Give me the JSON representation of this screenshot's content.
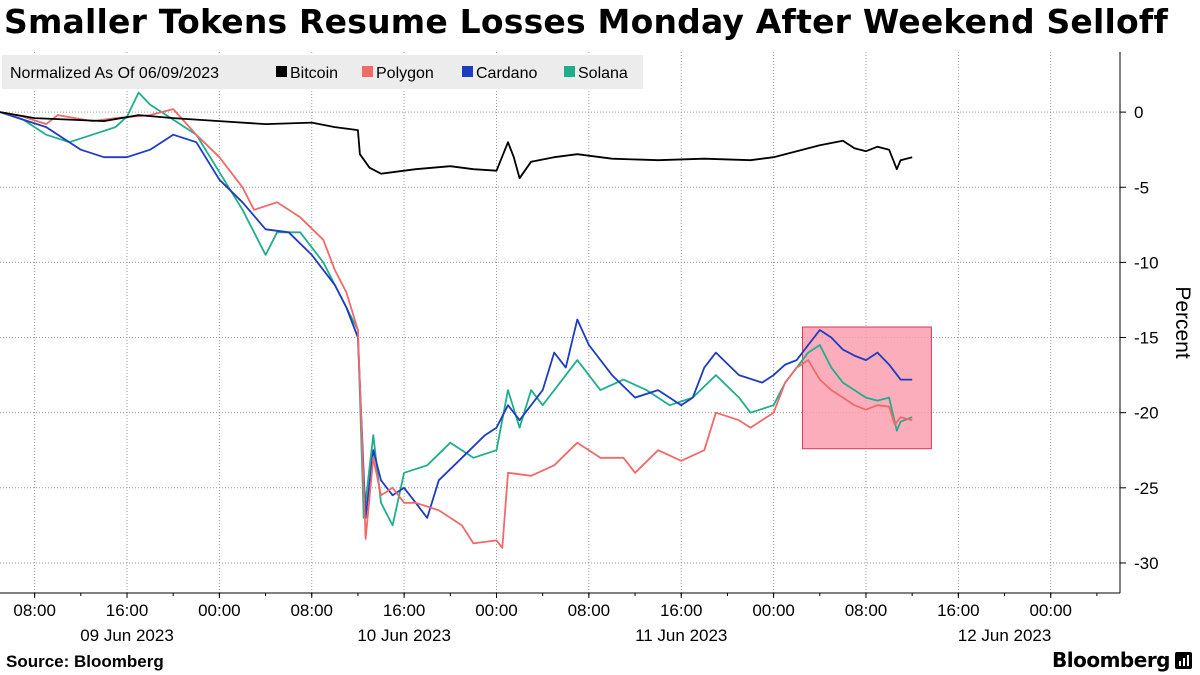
{
  "title": "Smaller Tokens Resume Losses Monday After Weekend Selloff",
  "source": "Source:  Bloomberg",
  "brand": "Bloomberg",
  "chart_data": {
    "type": "line",
    "title": "Smaller Tokens Resume Losses Monday After Weekend Selloff",
    "legend_title": "Normalized As Of 06/09/2023",
    "legend_position": "top-left",
    "ylabel": "Percent",
    "ylim": [
      -32,
      4
    ],
    "yticks": [
      0,
      -5,
      -10,
      -15,
      -20,
      -25,
      -30
    ],
    "ytick_labels": [
      "0",
      "-5",
      "-10",
      "-15",
      "-20",
      "-25",
      "-30"
    ],
    "xlim": [
      "2023-06-09 05:00",
      "2023-06-13 06:00"
    ],
    "xticks": [
      "2023-06-09 08:00",
      "2023-06-09 16:00",
      "2023-06-10 00:00",
      "2023-06-10 08:00",
      "2023-06-10 16:00",
      "2023-06-11 00:00",
      "2023-06-11 08:00",
      "2023-06-11 16:00",
      "2023-06-12 00:00",
      "2023-06-12 08:00",
      "2023-06-12 16:00",
      "2023-06-13 00:00"
    ],
    "xtick_labels": [
      "08:00",
      "16:00",
      "00:00",
      "08:00",
      "16:00",
      "00:00",
      "08:00",
      "16:00",
      "00:00",
      "08:00",
      "16:00",
      "00:00"
    ],
    "date_labels": [
      {
        "label": "09 Jun 2023",
        "at": "2023-06-09 16:00"
      },
      {
        "label": "10 Jun 2023",
        "at": "2023-06-10 16:00"
      },
      {
        "label": "11 Jun 2023",
        "at": "2023-06-11 16:00"
      },
      {
        "label": "12 Jun 2023",
        "at": "2023-06-12 20:00"
      }
    ],
    "grid": true,
    "highlight": {
      "x_start": "2023-06-12 02:30",
      "x_end": "2023-06-12 13:40",
      "y_top": -14.3,
      "y_bottom": -22.4,
      "color": "#fa9fb0"
    },
    "series": [
      {
        "name": "Bitcoin",
        "color": "#000000",
        "points": [
          [
            "2023-06-09 05:00",
            0
          ],
          [
            "2023-06-09 08:00",
            -0.4
          ],
          [
            "2023-06-09 11:00",
            -0.5
          ],
          [
            "2023-06-09 14:00",
            -0.6
          ],
          [
            "2023-06-09 17:00",
            -0.2
          ],
          [
            "2023-06-09 20:00",
            -0.4
          ],
          [
            "2023-06-10 00:00",
            -0.6
          ],
          [
            "2023-06-10 04:00",
            -0.8
          ],
          [
            "2023-06-10 08:00",
            -0.7
          ],
          [
            "2023-06-10 10:00",
            -1.0
          ],
          [
            "2023-06-10 12:00",
            -1.2
          ],
          [
            "2023-06-10 12:10",
            -2.8
          ],
          [
            "2023-06-10 13:00",
            -3.7
          ],
          [
            "2023-06-10 14:00",
            -4.1
          ],
          [
            "2023-06-10 15:00",
            -4.0
          ],
          [
            "2023-06-10 17:00",
            -3.8
          ],
          [
            "2023-06-10 20:00",
            -3.6
          ],
          [
            "2023-06-10 22:00",
            -3.8
          ],
          [
            "2023-06-11 00:00",
            -3.9
          ],
          [
            "2023-06-11 01:00",
            -2.0
          ],
          [
            "2023-06-11 01:30",
            -3.0
          ],
          [
            "2023-06-11 02:00",
            -4.4
          ],
          [
            "2023-06-11 03:00",
            -3.3
          ],
          [
            "2023-06-11 05:00",
            -3.0
          ],
          [
            "2023-06-11 07:00",
            -2.8
          ],
          [
            "2023-06-11 10:00",
            -3.1
          ],
          [
            "2023-06-11 14:00",
            -3.2
          ],
          [
            "2023-06-11 18:00",
            -3.1
          ],
          [
            "2023-06-11 22:00",
            -3.2
          ],
          [
            "2023-06-12 00:00",
            -3.0
          ],
          [
            "2023-06-12 02:00",
            -2.6
          ],
          [
            "2023-06-12 04:00",
            -2.2
          ],
          [
            "2023-06-12 06:00",
            -1.9
          ],
          [
            "2023-06-12 07:00",
            -2.4
          ],
          [
            "2023-06-12 08:00",
            -2.6
          ],
          [
            "2023-06-12 09:00",
            -2.3
          ],
          [
            "2023-06-12 10:00",
            -2.5
          ],
          [
            "2023-06-12 10:40",
            -3.8
          ],
          [
            "2023-06-12 11:00",
            -3.2
          ],
          [
            "2023-06-12 12:00",
            -3.0
          ]
        ]
      },
      {
        "name": "Polygon",
        "color": "#f06a6a",
        "points": [
          [
            "2023-06-09 05:00",
            0
          ],
          [
            "2023-06-09 07:00",
            -0.3
          ],
          [
            "2023-06-09 09:00",
            -0.8
          ],
          [
            "2023-06-09 10:00",
            -0.2
          ],
          [
            "2023-06-09 13:00",
            -0.6
          ],
          [
            "2023-06-09 15:00",
            -0.4
          ],
          [
            "2023-06-09 18:00",
            -0.2
          ],
          [
            "2023-06-09 20:00",
            0.2
          ],
          [
            "2023-06-09 22:00",
            -1.5
          ],
          [
            "2023-06-10 00:00",
            -3.0
          ],
          [
            "2023-06-10 02:00",
            -5.0
          ],
          [
            "2023-06-10 03:00",
            -6.5
          ],
          [
            "2023-06-10 05:00",
            -6.0
          ],
          [
            "2023-06-10 07:00",
            -7.0
          ],
          [
            "2023-06-10 09:00",
            -8.5
          ],
          [
            "2023-06-10 10:00",
            -10.5
          ],
          [
            "2023-06-10 11:00",
            -12.0
          ],
          [
            "2023-06-10 12:00",
            -14.5
          ],
          [
            "2023-06-10 12:40",
            -28.4
          ],
          [
            "2023-06-10 13:20",
            -23.0
          ],
          [
            "2023-06-10 14:00",
            -25.5
          ],
          [
            "2023-06-10 15:00",
            -25.0
          ],
          [
            "2023-06-10 16:00",
            -26.0
          ],
          [
            "2023-06-10 17:00",
            -26.0
          ],
          [
            "2023-06-10 19:00",
            -26.5
          ],
          [
            "2023-06-10 21:00",
            -27.5
          ],
          [
            "2023-06-10 22:00",
            -28.7
          ],
          [
            "2023-06-11 00:00",
            -28.5
          ],
          [
            "2023-06-11 00:30",
            -29.0
          ],
          [
            "2023-06-11 01:00",
            -24.0
          ],
          [
            "2023-06-11 03:00",
            -24.2
          ],
          [
            "2023-06-11 05:00",
            -23.5
          ],
          [
            "2023-06-11 07:00",
            -22.0
          ],
          [
            "2023-06-11 09:00",
            -23.0
          ],
          [
            "2023-06-11 11:00",
            -23.0
          ],
          [
            "2023-06-11 12:00",
            -24.0
          ],
          [
            "2023-06-11 14:00",
            -22.5
          ],
          [
            "2023-06-11 16:00",
            -23.2
          ],
          [
            "2023-06-11 18:00",
            -22.5
          ],
          [
            "2023-06-11 19:00",
            -20.0
          ],
          [
            "2023-06-11 21:00",
            -20.5
          ],
          [
            "2023-06-11 22:00",
            -21.0
          ],
          [
            "2023-06-12 00:00",
            -20.0
          ],
          [
            "2023-06-12 01:00",
            -18.0
          ],
          [
            "2023-06-12 02:00",
            -17.0
          ],
          [
            "2023-06-12 03:00",
            -16.5
          ],
          [
            "2023-06-12 04:00",
            -17.8
          ],
          [
            "2023-06-12 05:00",
            -18.5
          ],
          [
            "2023-06-12 06:00",
            -19.0
          ],
          [
            "2023-06-12 07:00",
            -19.5
          ],
          [
            "2023-06-12 08:00",
            -19.8
          ],
          [
            "2023-06-12 09:00",
            -19.5
          ],
          [
            "2023-06-12 10:00",
            -19.6
          ],
          [
            "2023-06-12 10:30",
            -20.8
          ],
          [
            "2023-06-12 11:00",
            -20.3
          ],
          [
            "2023-06-12 12:00",
            -20.5
          ]
        ]
      },
      {
        "name": "Cardano",
        "color": "#1e3cbf",
        "points": [
          [
            "2023-06-09 05:00",
            0
          ],
          [
            "2023-06-09 07:00",
            -0.5
          ],
          [
            "2023-06-09 09:00",
            -1.0
          ],
          [
            "2023-06-09 12:00",
            -2.5
          ],
          [
            "2023-06-09 14:00",
            -3.0
          ],
          [
            "2023-06-09 16:00",
            -3.0
          ],
          [
            "2023-06-09 18:00",
            -2.5
          ],
          [
            "2023-06-09 20:00",
            -1.5
          ],
          [
            "2023-06-09 22:00",
            -2.0
          ],
          [
            "2023-06-10 00:00",
            -4.5
          ],
          [
            "2023-06-10 02:00",
            -6.0
          ],
          [
            "2023-06-10 04:00",
            -7.8
          ],
          [
            "2023-06-10 06:00",
            -8.0
          ],
          [
            "2023-06-10 08:00",
            -9.5
          ],
          [
            "2023-06-10 10:00",
            -11.5
          ],
          [
            "2023-06-10 11:00",
            -13.0
          ],
          [
            "2023-06-10 12:00",
            -15.0
          ],
          [
            "2023-06-10 12:40",
            -27.0
          ],
          [
            "2023-06-10 13:20",
            -22.5
          ],
          [
            "2023-06-10 14:00",
            -24.5
          ],
          [
            "2023-06-10 15:00",
            -25.5
          ],
          [
            "2023-06-10 16:00",
            -25.0
          ],
          [
            "2023-06-10 17:00",
            -26.0
          ],
          [
            "2023-06-10 18:00",
            -27.0
          ],
          [
            "2023-06-10 19:00",
            -24.5
          ],
          [
            "2023-06-10 21:00",
            -23.0
          ],
          [
            "2023-06-10 23:00",
            -21.5
          ],
          [
            "2023-06-11 00:00",
            -21.0
          ],
          [
            "2023-06-11 01:00",
            -19.5
          ],
          [
            "2023-06-11 02:00",
            -20.5
          ],
          [
            "2023-06-11 03:00",
            -19.5
          ],
          [
            "2023-06-11 04:00",
            -18.5
          ],
          [
            "2023-06-11 05:00",
            -16.0
          ],
          [
            "2023-06-11 06:00",
            -17.0
          ],
          [
            "2023-06-11 07:00",
            -13.8
          ],
          [
            "2023-06-11 08:00",
            -15.5
          ],
          [
            "2023-06-11 10:00",
            -17.5
          ],
          [
            "2023-06-11 12:00",
            -19.0
          ],
          [
            "2023-06-11 14:00",
            -18.5
          ],
          [
            "2023-06-11 16:00",
            -19.5
          ],
          [
            "2023-06-11 17:00",
            -19.0
          ],
          [
            "2023-06-11 18:00",
            -17.0
          ],
          [
            "2023-06-11 19:00",
            -16.0
          ],
          [
            "2023-06-11 21:00",
            -17.5
          ],
          [
            "2023-06-11 23:00",
            -18.0
          ],
          [
            "2023-06-12 00:00",
            -17.5
          ],
          [
            "2023-06-12 01:00",
            -16.8
          ],
          [
            "2023-06-12 02:00",
            -16.5
          ],
          [
            "2023-06-12 03:00",
            -15.5
          ],
          [
            "2023-06-12 04:00",
            -14.5
          ],
          [
            "2023-06-12 05:00",
            -15.0
          ],
          [
            "2023-06-12 06:00",
            -15.8
          ],
          [
            "2023-06-12 07:00",
            -16.2
          ],
          [
            "2023-06-12 08:00",
            -16.5
          ],
          [
            "2023-06-12 09:00",
            -16.0
          ],
          [
            "2023-06-12 10:00",
            -16.8
          ],
          [
            "2023-06-12 11:00",
            -17.8
          ],
          [
            "2023-06-12 12:00",
            -17.8
          ]
        ]
      },
      {
        "name": "Solana",
        "color": "#1fae8c",
        "points": [
          [
            "2023-06-09 05:00",
            0
          ],
          [
            "2023-06-09 07:00",
            -0.5
          ],
          [
            "2023-06-09 09:00",
            -1.5
          ],
          [
            "2023-06-09 11:00",
            -2.0
          ],
          [
            "2023-06-09 13:00",
            -1.5
          ],
          [
            "2023-06-09 15:00",
            -1.0
          ],
          [
            "2023-06-09 16:00",
            -0.3
          ],
          [
            "2023-06-09 17:00",
            1.3
          ],
          [
            "2023-06-09 18:00",
            0.5
          ],
          [
            "2023-06-09 20:00",
            -0.5
          ],
          [
            "2023-06-09 22:00",
            -1.5
          ],
          [
            "2023-06-10 00:00",
            -4.0
          ],
          [
            "2023-06-10 02:00",
            -6.5
          ],
          [
            "2023-06-10 04:00",
            -9.5
          ],
          [
            "2023-06-10 05:00",
            -8.0
          ],
          [
            "2023-06-10 07:00",
            -8.0
          ],
          [
            "2023-06-10 09:00",
            -10.0
          ],
          [
            "2023-06-10 11:00",
            -13.0
          ],
          [
            "2023-06-10 12:00",
            -14.5
          ],
          [
            "2023-06-10 12:30",
            -27.0
          ],
          [
            "2023-06-10 13:20",
            -21.5
          ],
          [
            "2023-06-10 14:00",
            -26.0
          ],
          [
            "2023-06-10 15:00",
            -27.5
          ],
          [
            "2023-06-10 16:00",
            -24.0
          ],
          [
            "2023-06-10 18:00",
            -23.5
          ],
          [
            "2023-06-10 20:00",
            -22.0
          ],
          [
            "2023-06-10 22:00",
            -23.0
          ],
          [
            "2023-06-11 00:00",
            -22.5
          ],
          [
            "2023-06-11 01:00",
            -18.5
          ],
          [
            "2023-06-11 02:00",
            -21.0
          ],
          [
            "2023-06-11 03:00",
            -18.5
          ],
          [
            "2023-06-11 04:00",
            -19.5
          ],
          [
            "2023-06-11 06:00",
            -17.5
          ],
          [
            "2023-06-11 07:00",
            -16.5
          ],
          [
            "2023-06-11 09:00",
            -18.5
          ],
          [
            "2023-06-11 11:00",
            -17.8
          ],
          [
            "2023-06-11 13:00",
            -18.5
          ],
          [
            "2023-06-11 15:00",
            -19.5
          ],
          [
            "2023-06-11 17:00",
            -19.0
          ],
          [
            "2023-06-11 19:00",
            -17.5
          ],
          [
            "2023-06-11 21:00",
            -19.0
          ],
          [
            "2023-06-11 22:00",
            -20.0
          ],
          [
            "2023-06-12 00:00",
            -19.5
          ],
          [
            "2023-06-12 01:00",
            -18.0
          ],
          [
            "2023-06-12 02:00",
            -17.0
          ],
          [
            "2023-06-12 03:00",
            -16.0
          ],
          [
            "2023-06-12 04:00",
            -15.5
          ],
          [
            "2023-06-12 05:00",
            -17.0
          ],
          [
            "2023-06-12 06:00",
            -18.0
          ],
          [
            "2023-06-12 07:00",
            -18.5
          ],
          [
            "2023-06-12 08:00",
            -19.0
          ],
          [
            "2023-06-12 09:00",
            -19.2
          ],
          [
            "2023-06-12 10:00",
            -19.0
          ],
          [
            "2023-06-12 10:40",
            -21.2
          ],
          [
            "2023-06-12 11:00",
            -20.6
          ],
          [
            "2023-06-12 12:00",
            -20.3
          ]
        ]
      }
    ]
  }
}
